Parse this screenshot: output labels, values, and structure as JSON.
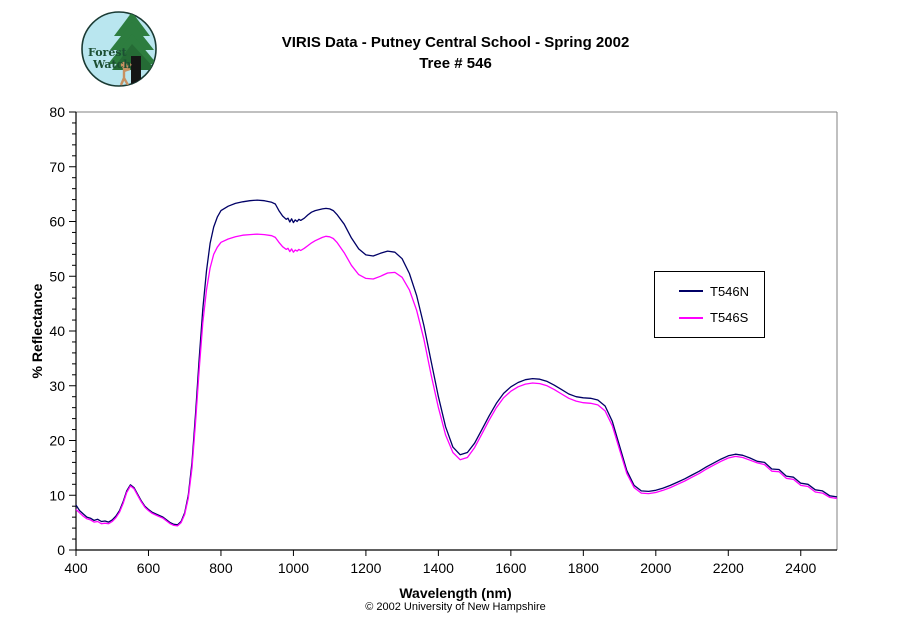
{
  "header": {
    "title_line1": "VIRIS Data - Putney Central School - Spring 2002",
    "title_line2": "Tree # 546"
  },
  "logo": {
    "line1": "Forest",
    "line2": "Watch",
    "bg_color": "#b9e6ef",
    "ring_color": "#1a3a33",
    "tree_color": "#2d7d3f",
    "trunk_color": "#151515",
    "person_color": "#c79162",
    "text_color": "#1c4f33"
  },
  "legend": {
    "items": [
      {
        "label": "T546N",
        "color": "#000066"
      },
      {
        "label": "T546S",
        "color": "#ff00ff"
      }
    ]
  },
  "axes": {
    "y_title": "% Reflectance",
    "x_title": "Wavelength (nm)"
  },
  "footer": {
    "copyright": "© 2002 University of New Hampshire"
  },
  "chart_data": {
    "type": "line",
    "title": "VIRIS Data - Putney Central School - Spring 2002 / Tree # 546",
    "xlabel": "Wavelength (nm)",
    "ylabel": "% Reflectance",
    "xlim": [
      400,
      2500
    ],
    "ylim": [
      0,
      80
    ],
    "xticks": [
      400,
      600,
      800,
      1000,
      1200,
      1400,
      1600,
      1800,
      2000,
      2200,
      2400
    ],
    "yticks": [
      0,
      10,
      20,
      30,
      40,
      50,
      60,
      70,
      80
    ],
    "y_minor_step": 2,
    "grid": false,
    "legend_position": "right-center",
    "x": [
      400,
      410,
      420,
      430,
      440,
      450,
      460,
      470,
      480,
      490,
      500,
      510,
      520,
      530,
      540,
      550,
      560,
      570,
      580,
      590,
      600,
      610,
      620,
      630,
      640,
      650,
      660,
      670,
      680,
      690,
      700,
      710,
      720,
      730,
      740,
      750,
      760,
      770,
      780,
      790,
      800,
      820,
      840,
      860,
      880,
      900,
      920,
      940,
      950,
      960,
      970,
      980,
      985,
      990,
      995,
      1000,
      1005,
      1010,
      1015,
      1020,
      1030,
      1040,
      1050,
      1060,
      1080,
      1090,
      1100,
      1110,
      1120,
      1140,
      1160,
      1180,
      1200,
      1220,
      1240,
      1260,
      1280,
      1300,
      1320,
      1340,
      1360,
      1380,
      1400,
      1420,
      1440,
      1460,
      1480,
      1500,
      1520,
      1540,
      1560,
      1580,
      1600,
      1620,
      1640,
      1660,
      1680,
      1700,
      1720,
      1740,
      1760,
      1780,
      1800,
      1820,
      1840,
      1860,
      1880,
      1900,
      1920,
      1940,
      1960,
      1980,
      2000,
      2020,
      2040,
      2060,
      2080,
      2100,
      2120,
      2140,
      2160,
      2180,
      2200,
      2220,
      2240,
      2260,
      2280,
      2300,
      2320,
      2340,
      2360,
      2380,
      2400,
      2420,
      2440,
      2460,
      2480,
      2500
    ],
    "series": [
      {
        "name": "T546N",
        "color": "#000066",
        "values": [
          8.2,
          7.2,
          6.6,
          6.0,
          5.8,
          5.4,
          5.6,
          5.2,
          5.3,
          5.1,
          5.5,
          6.2,
          7.2,
          8.8,
          10.8,
          11.9,
          11.4,
          10.2,
          9.0,
          8.0,
          7.4,
          6.9,
          6.6,
          6.3,
          6.0,
          5.5,
          5.0,
          4.7,
          4.6,
          5.2,
          6.8,
          10.0,
          16.0,
          25.0,
          35.0,
          44.0,
          51.0,
          56.0,
          59.0,
          60.8,
          62.0,
          62.8,
          63.3,
          63.6,
          63.8,
          63.9,
          63.8,
          63.5,
          63.2,
          62.0,
          61.0,
          60.4,
          60.6,
          59.9,
          60.5,
          59.8,
          60.3,
          60.0,
          60.4,
          60.2,
          60.6,
          61.2,
          61.7,
          62.0,
          62.3,
          62.4,
          62.3,
          62.0,
          61.3,
          59.5,
          57.0,
          55.0,
          53.9,
          53.7,
          54.2,
          54.6,
          54.4,
          53.2,
          50.5,
          46.5,
          41.0,
          34.5,
          28.0,
          22.5,
          18.8,
          17.4,
          17.8,
          19.5,
          22.0,
          24.5,
          26.8,
          28.6,
          29.8,
          30.6,
          31.1,
          31.3,
          31.2,
          30.8,
          30.1,
          29.3,
          28.5,
          28.0,
          27.8,
          27.7,
          27.4,
          26.3,
          23.5,
          19.0,
          14.5,
          11.8,
          10.8,
          10.7,
          10.9,
          11.3,
          11.8,
          12.4,
          13.0,
          13.7,
          14.4,
          15.2,
          15.9,
          16.6,
          17.2,
          17.5,
          17.3,
          16.8,
          16.2,
          16.0,
          14.8,
          14.7,
          13.5,
          13.3,
          12.2,
          12.0,
          11.0,
          10.8,
          9.9,
          9.7
        ]
      },
      {
        "name": "T546S",
        "color": "#ff00ff",
        "values": [
          7.4,
          6.8,
          6.2,
          5.7,
          5.5,
          5.1,
          5.2,
          4.8,
          4.9,
          4.8,
          5.2,
          5.9,
          6.9,
          8.5,
          10.5,
          11.7,
          11.2,
          10.0,
          8.8,
          7.8,
          7.2,
          6.7,
          6.4,
          6.1,
          5.8,
          5.3,
          4.8,
          4.5,
          4.4,
          5.0,
          6.5,
          9.5,
          15.0,
          23.5,
          33.0,
          41.5,
          47.5,
          51.5,
          54.0,
          55.3,
          56.2,
          56.8,
          57.2,
          57.5,
          57.6,
          57.7,
          57.6,
          57.4,
          57.1,
          56.2,
          55.4,
          54.9,
          55.1,
          54.5,
          55.0,
          54.4,
          54.8,
          54.6,
          54.9,
          54.7,
          55.1,
          55.6,
          56.1,
          56.5,
          57.1,
          57.3,
          57.2,
          56.9,
          56.2,
          54.3,
          52.0,
          50.3,
          49.6,
          49.5,
          50.0,
          50.6,
          50.7,
          49.8,
          47.5,
          43.8,
          38.5,
          32.0,
          26.0,
          21.0,
          17.8,
          16.5,
          16.9,
          18.7,
          21.2,
          23.7,
          26.0,
          27.8,
          29.0,
          29.8,
          30.3,
          30.5,
          30.4,
          30.0,
          29.3,
          28.5,
          27.7,
          27.2,
          26.9,
          26.8,
          26.5,
          25.4,
          22.7,
          18.3,
          14.0,
          11.4,
          10.4,
          10.3,
          10.5,
          10.9,
          11.4,
          12.0,
          12.6,
          13.3,
          14.0,
          14.8,
          15.5,
          16.2,
          16.8,
          17.1,
          16.9,
          16.4,
          15.9,
          15.6,
          14.4,
          14.3,
          13.1,
          12.9,
          11.8,
          11.6,
          10.6,
          10.4,
          9.6,
          9.4
        ]
      }
    ]
  }
}
